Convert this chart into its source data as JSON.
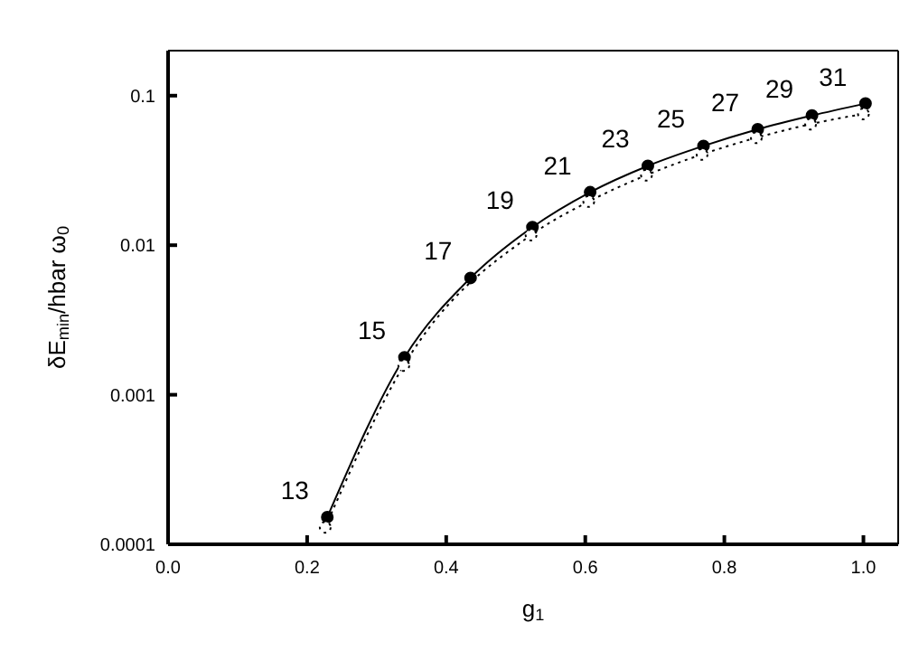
{
  "chart_data": {
    "type": "line",
    "xlabel": "g$_{1}$",
    "ylabel": "δE$_{min}$/hbar ω$_{0}$",
    "log": "y",
    "xlim": [
      0,
      1.05
    ],
    "xticks": [
      {
        "value": 0,
        "label": "0.0"
      },
      0.2,
      0.4,
      0.6,
      0.8,
      {
        "value": 1,
        "label": "1.0"
      }
    ],
    "ylim": [
      0.0001,
      0.2
    ],
    "yticks": [
      0.0001,
      0.001,
      0.01,
      0.1
    ],
    "marker": "circle",
    "series": [
      {
        "color": "#000000",
        "line_style": "solid",
        "x": [
          0.229,
          0.34,
          0.435,
          0.524,
          0.607,
          0.69,
          0.77,
          0.848,
          0.926,
          1.003
        ],
        "values": [
          0.000152,
          0.00178,
          0.00604,
          0.0132,
          0.0226,
          0.0339,
          0.0461,
          0.0596,
          0.0736,
          0.0885
        ]
      },
      {
        "color": "#000000",
        "line_style": "dotted",
        "x": [
          0.226,
          0.339,
          0.435,
          0.522,
          0.605,
          0.688,
          0.768,
          0.846,
          0.924,
          1.0
        ],
        "values": [
          0.00013,
          0.00157,
          null,
          0.0117,
          0.0196,
          0.0294,
          0.0405,
          0.0523,
          0.0645,
          0.0755
        ]
      }
    ],
    "annotations": [
      {
        "text": "13",
        "x": 0.229,
        "y": 0.000152
      },
      {
        "text": "15",
        "x": 0.34,
        "y": 0.00178
      },
      {
        "text": "17",
        "x": 0.435,
        "y": 0.00604
      },
      {
        "text": "19",
        "x": 0.524,
        "y": 0.0132
      },
      {
        "text": "21",
        "x": 0.607,
        "y": 0.0226
      },
      {
        "text": "23",
        "x": 0.69,
        "y": 0.0339
      },
      {
        "text": "25",
        "x": 0.77,
        "y": 0.0461
      },
      {
        "text": "27",
        "x": 0.848,
        "y": 0.0596
      },
      {
        "text": "29",
        "x": 0.926,
        "y": 0.0736
      },
      {
        "text": "31",
        "x": 1.003,
        "y": 0.0885
      }
    ]
  }
}
